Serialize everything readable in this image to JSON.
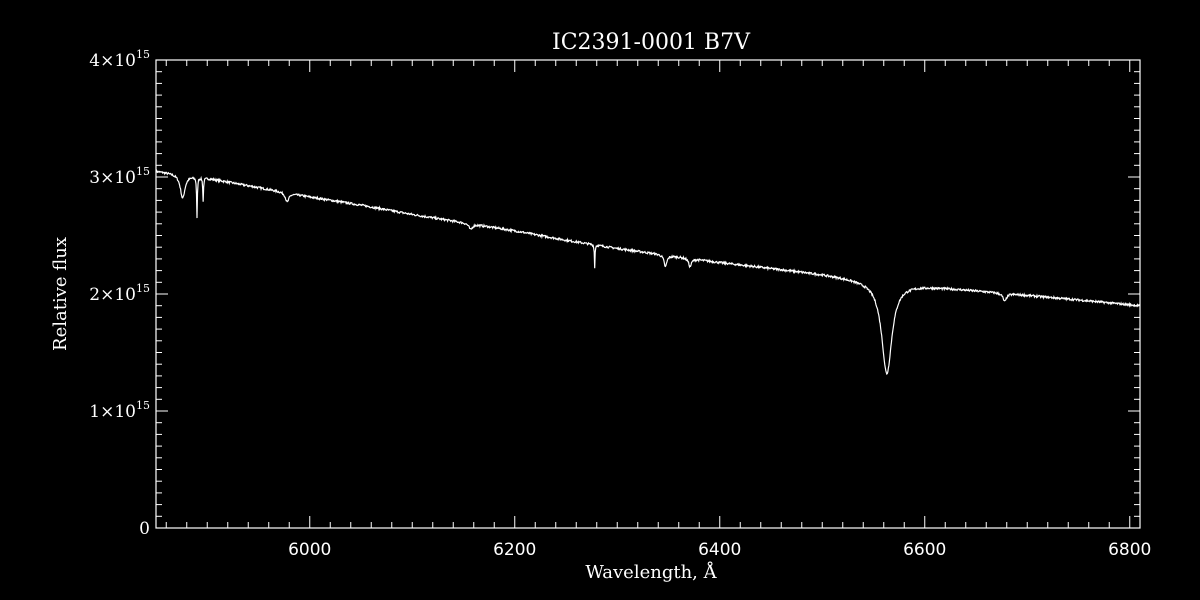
{
  "chart_data": {
    "type": "line",
    "title": "IC2391-0001   B7V",
    "xlabel": "Wavelength, Å",
    "ylabel": "Relative flux",
    "xlim": [
      5850,
      6810
    ],
    "ylim": [
      0,
      4000000000000000.0
    ],
    "grid": false,
    "legend": "none",
    "line_color": "#ffffff",
    "background": "#000000",
    "x_ticks": [
      {
        "value": 6000,
        "label": "6000"
      },
      {
        "value": 6200,
        "label": "6200"
      },
      {
        "value": 6400,
        "label": "6400"
      },
      {
        "value": 6600,
        "label": "6600"
      },
      {
        "value": 6800,
        "label": "6800"
      }
    ],
    "y_ticks": [
      {
        "value": 0,
        "label": "0",
        "mant": "",
        "exp": ""
      },
      {
        "value": 1000000000000000.0,
        "label": "1×10^15",
        "mant": "1×10",
        "exp": "15"
      },
      {
        "value": 2000000000000000.0,
        "label": "2×10^15",
        "mant": "2×10",
        "exp": "15"
      },
      {
        "value": 3000000000000000.0,
        "label": "3×10^15",
        "mant": "3×10",
        "exp": "15"
      },
      {
        "value": 4000000000000000.0,
        "label": "4×10^15",
        "mant": "4×10",
        "exp": "15"
      }
    ],
    "continuum": [
      [
        5850,
        3050000000000000.0
      ],
      [
        5900,
        2990000000000000.0
      ],
      [
        5950,
        2910000000000000.0
      ],
      [
        6000,
        2830000000000000.0
      ],
      [
        6050,
        2760000000000000.0
      ],
      [
        6100,
        2680000000000000.0
      ],
      [
        6150,
        2610000000000000.0
      ],
      [
        6200,
        2540000000000000.0
      ],
      [
        6250,
        2460000000000000.0
      ],
      [
        6300,
        2390000000000000.0
      ],
      [
        6350,
        2330000000000000.0
      ],
      [
        6400,
        2270000000000000.0
      ],
      [
        6450,
        2220000000000000.0
      ],
      [
        6500,
        2170000000000000.0
      ],
      [
        6540,
        2120000000000000.0
      ],
      [
        6600,
        2070000000000000.0
      ],
      [
        6650,
        2030000000000000.0
      ],
      [
        6700,
        1990000000000000.0
      ],
      [
        6750,
        1950000000000000.0
      ],
      [
        6810,
        1900000000000000.0
      ]
    ],
    "absorption_lines": [
      {
        "center": 5876,
        "depth": 200000000000000.0,
        "width": 4
      },
      {
        "center": 5890,
        "depth": 350000000000000.0,
        "width": 0.6
      },
      {
        "center": 5896,
        "depth": 200000000000000.0,
        "width": 0.6
      },
      {
        "center": 5978,
        "depth": 80000000000000.0,
        "width": 3
      },
      {
        "center": 6157,
        "depth": 50000000000000.0,
        "width": 3
      },
      {
        "center": 6278,
        "depth": 200000000000000.0,
        "width": 0.5
      },
      {
        "center": 6347,
        "depth": 100000000000000.0,
        "width": 2.5
      },
      {
        "center": 6371,
        "depth": 70000000000000.0,
        "width": 2.5
      },
      {
        "center": 6563,
        "depth": 780000000000000.0,
        "width": 9
      },
      {
        "center": 6678,
        "depth": 70000000000000.0,
        "width": 3
      }
    ]
  }
}
